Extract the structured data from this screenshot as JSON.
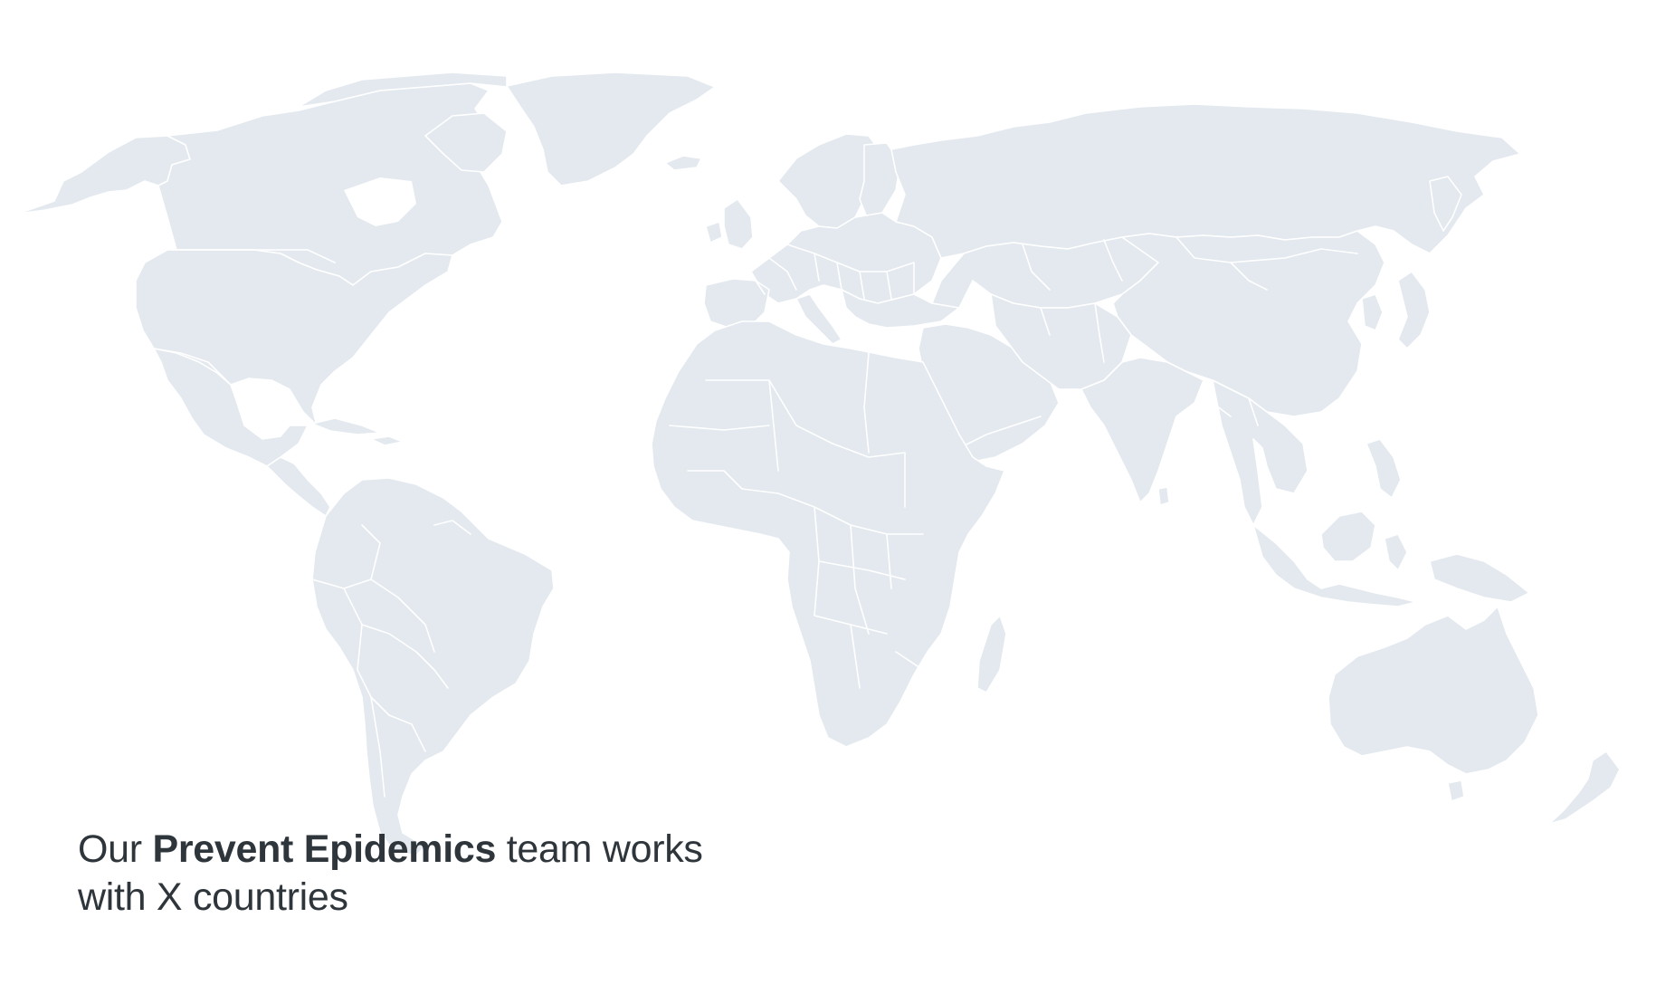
{
  "caption": {
    "prefix": "Our",
    "highlight": "Prevent Epidemics",
    "suffix": "team works",
    "line2": "with X countries"
  },
  "map": {
    "land_color": "#e3e9ef",
    "border_color": "#ffffff",
    "text_color": "#2e353b",
    "background": "#ffffff"
  }
}
